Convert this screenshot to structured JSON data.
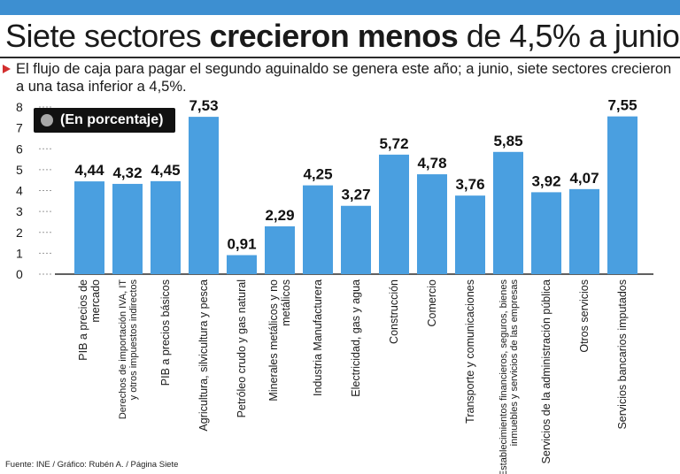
{
  "header": {
    "title_pre": "Siete sectores ",
    "title_bold": "crecieron menos",
    "title_post": " de 4,5% a junio",
    "subtitle": "El flujo de caja para pagar el segundo aguinaldo se genera este año; a junio, siete sectores crecieron a una tasa inferior a 4,5%."
  },
  "unit_badge": "(En porcentaje)",
  "footer": {
    "source": "Fuente: INE / Gráfico: Rubén A. / Página Siete"
  },
  "colors": {
    "bar": "#4a9fe0",
    "accent_bar": "#3d8fd1",
    "marker": "#d32f2f"
  },
  "chart_data": {
    "type": "bar",
    "title": "Siete sectores crecieron menos de 4,5% a junio",
    "ylabel": "",
    "xlabel": "",
    "ylim": [
      0,
      8
    ],
    "yticks": [
      "0",
      "1",
      "2",
      "3",
      "4",
      "5",
      "6",
      "7",
      "8"
    ],
    "grid": false,
    "categories": [
      [
        "PIB a precios de",
        "mercado"
      ],
      [
        "Derechos de importación IVA, IT",
        "y otros impuestos indirectos"
      ],
      [
        "PIB a precios básicos"
      ],
      [
        "Agricultura, silvicultura y pesca"
      ],
      [
        "Petróleo crudo y gas natural"
      ],
      [
        "Minerales metálicos y no",
        "metálicos"
      ],
      [
        "Industria Manufacturera"
      ],
      [
        "Electricidad, gas y agua"
      ],
      [
        "Construcción"
      ],
      [
        "Comercio"
      ],
      [
        "Transporte y comunicaciones"
      ],
      [
        "Establecimientos financieros, seguros, bienes",
        "inmuebles y servicios de las empresas"
      ],
      [
        "Servicios de la administración pública"
      ],
      [
        "Otros servicios"
      ],
      [
        "Servicios bancarios imputados"
      ]
    ],
    "values": [
      4.44,
      4.32,
      4.45,
      7.53,
      0.91,
      2.29,
      4.25,
      3.27,
      5.72,
      4.78,
      3.76,
      5.85,
      3.92,
      4.07,
      7.55
    ],
    "value_labels": [
      "4,44",
      "4,32",
      "4,45",
      "7,53",
      "0,91",
      "2,29",
      "4,25",
      "3,27",
      "5,72",
      "4,78",
      "3,76",
      "5,85",
      "3,92",
      "4,07",
      "7,55"
    ]
  }
}
